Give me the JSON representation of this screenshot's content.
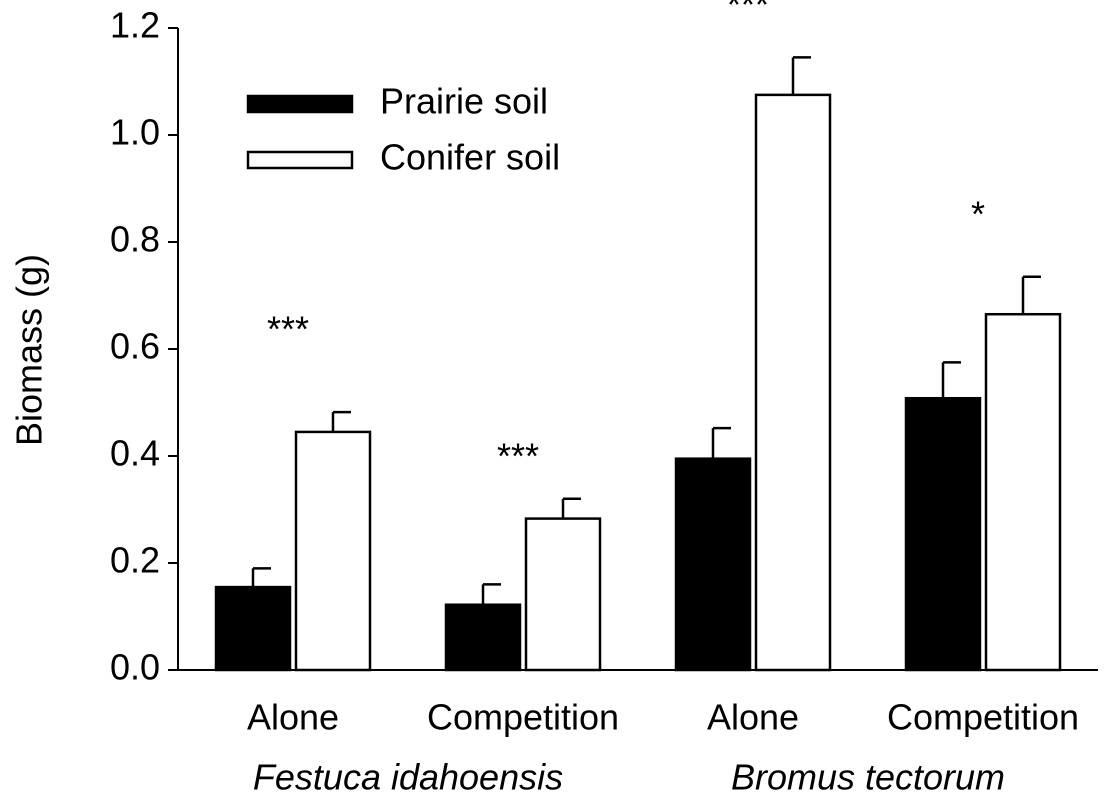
{
  "chart_data": {
    "type": "bar",
    "ylabel": "Biomass (g)",
    "categories": [
      "Alone",
      "Competition",
      "Alone",
      "Competition"
    ],
    "groups": [
      "Festuca idahoensis",
      "Bromus tectorum"
    ],
    "series": [
      {
        "name": "Prairie soil",
        "color": "#000000",
        "values": [
          0.155,
          0.122,
          0.395,
          0.508
        ],
        "errors": [
          0.035,
          0.038,
          0.057,
          0.067
        ]
      },
      {
        "name": "Conifer soil",
        "color": "#ffffff",
        "values": [
          0.445,
          0.283,
          1.075,
          0.665
        ],
        "errors": [
          0.037,
          0.037,
          0.07,
          0.07
        ]
      }
    ],
    "annotations": [
      "***",
      "***",
      "***",
      "*"
    ],
    "ylim": [
      0,
      1.2
    ],
    "yticks": [
      {
        "value": 0,
        "label": "0.0"
      },
      0.2,
      0.4,
      0.6,
      0.8,
      {
        "value": 1.0,
        "label": "1.0"
      },
      1.2
    ],
    "legend": "upper left"
  }
}
